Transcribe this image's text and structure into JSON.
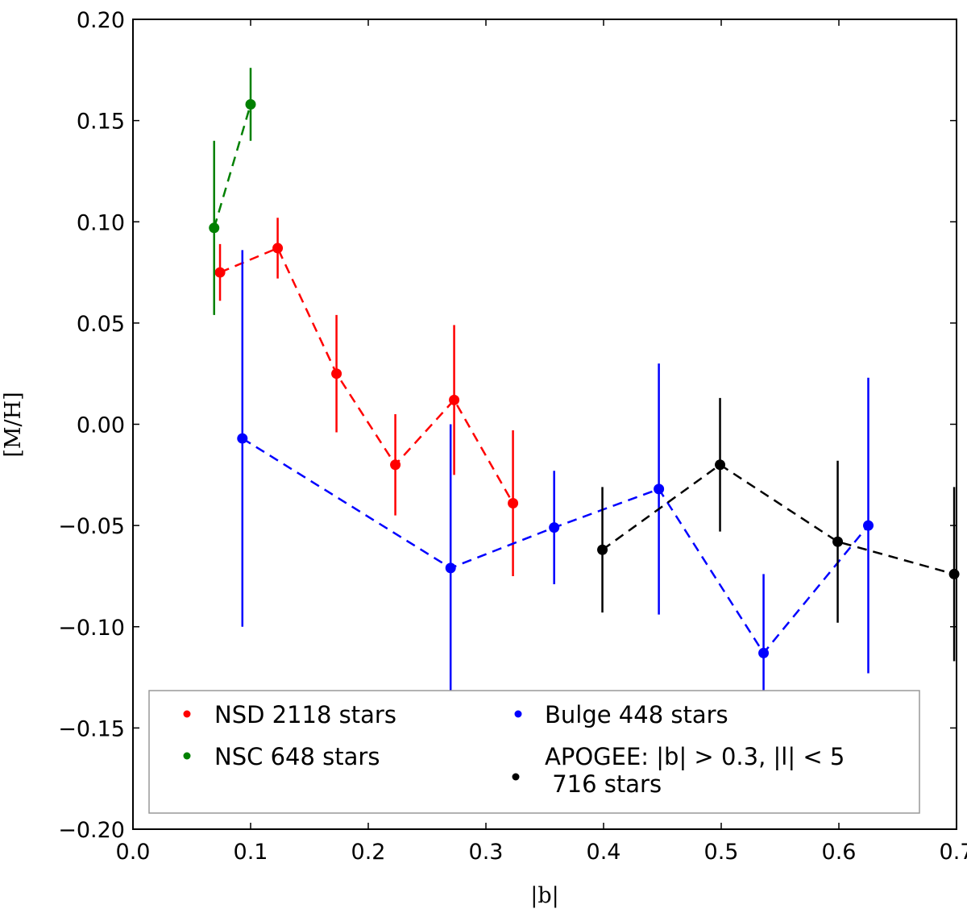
{
  "chart_data": {
    "type": "scatter",
    "xlabel": "|b|",
    "ylabel": "[M/H]",
    "xlim": [
      0.0,
      0.7
    ],
    "ylim": [
      -0.2,
      0.2
    ],
    "xticks": [
      "0.0",
      "0.1",
      "0.2",
      "0.3",
      "0.4",
      "0.5",
      "0.6",
      "0.7"
    ],
    "yticks": [
      "0.20",
      "0.15",
      "0.10",
      "0.05",
      "0.00",
      "−0.05",
      "−0.10",
      "−0.15",
      "−0.20"
    ],
    "legend_position": "bottom",
    "series": [
      {
        "name": "NSD 2118 stars",
        "color": "#ff0000",
        "x": [
          0.074,
          0.123,
          0.173,
          0.223,
          0.273,
          0.323
        ],
        "y": [
          0.075,
          0.087,
          0.025,
          -0.02,
          0.012,
          -0.039
        ],
        "yerr": [
          0.014,
          0.015,
          0.029,
          0.025,
          0.037,
          0.036
        ]
      },
      {
        "name": "NSC 648 stars",
        "color": "#008000",
        "x": [
          0.069,
          0.1
        ],
        "y": [
          0.097,
          0.158
        ],
        "yerr": [
          0.043,
          0.018
        ]
      },
      {
        "name": "Bulge 448 stars",
        "color": "#0000ff",
        "x": [
          0.093,
          0.27,
          0.358,
          0.447,
          0.536,
          0.625
        ],
        "y": [
          -0.007,
          -0.071,
          -0.051,
          -0.032,
          -0.113,
          -0.05
        ],
        "yerr": [
          0.093,
          0.071,
          0.028,
          0.062,
          0.039,
          0.073
        ]
      },
      {
        "name": "APOGEE: |b| > 0.3, |l| < 5\n 716 stars",
        "color": "#000000",
        "x": [
          0.399,
          0.499,
          0.599,
          0.698
        ],
        "y": [
          -0.062,
          -0.02,
          -0.058,
          -0.074
        ],
        "yerr": [
          0.031,
          0.033,
          0.04,
          0.043
        ]
      }
    ]
  }
}
